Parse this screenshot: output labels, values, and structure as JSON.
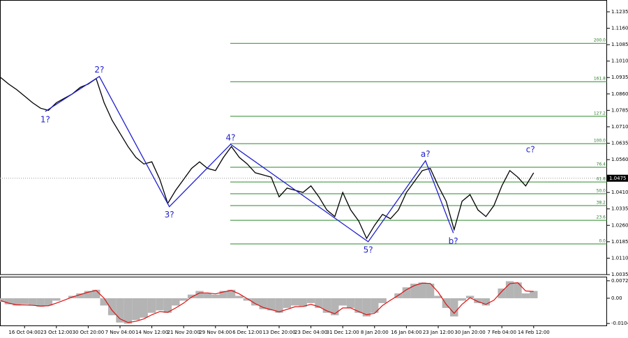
{
  "chart_data": [
    {
      "type": "line",
      "categories": [
        null,
        null,
        null,
        "16 Oct 04:00",
        null,
        null,
        null,
        "23 Oct 12:00",
        null,
        null,
        null,
        "30 Oct 20:00",
        null,
        null,
        null,
        "7 Nov 04:00",
        null,
        null,
        null,
        "14 Nov 12:00",
        null,
        null,
        null,
        "21 Nov 20:00",
        null,
        null,
        null,
        "29 Nov 04:00",
        null,
        null,
        null,
        "6 Dec 12:00",
        null,
        null,
        null,
        "13 Dec 20:00",
        null,
        null,
        null,
        "23 Dec 04:00",
        null,
        null,
        null,
        "31 Dec 12:00",
        null,
        null,
        null,
        "8 Jan 20:00",
        null,
        null,
        null,
        "16 Jan 04:00",
        null,
        null,
        null,
        "23 Jan 12:00",
        null,
        null,
        null,
        "30 Jan 20:00",
        null,
        null,
        null,
        "7 Feb 04:00",
        null,
        null,
        null,
        "14 Feb 12:00"
      ],
      "series": [
        {
          "color": "#000000",
          "values": [
            1.0935,
            1.0905,
            1.088,
            1.085,
            1.082,
            1.0795,
            1.0785,
            1.082,
            1.084,
            1.086,
            1.089,
            1.0905,
            1.093,
            1.082,
            1.074,
            1.068,
            1.062,
            1.057,
            1.054,
            1.055,
            1.047,
            1.036,
            1.042,
            1.047,
            1.052,
            1.055,
            1.052,
            1.051,
            1.057,
            1.062,
            1.057,
            1.054,
            1.05,
            1.049,
            1.048,
            1.039,
            1.043,
            1.042,
            1.041,
            1.044,
            1.039,
            1.033,
            1.03,
            1.041,
            1.033,
            1.028,
            1.02,
            1.026,
            1.031,
            1.029,
            1.033,
            1.041,
            1.046,
            1.051,
            1.052,
            1.044,
            1.037,
            1.024,
            1.037,
            1.04,
            1.033,
            1.03,
            1.035,
            1.044,
            1.051,
            1.048,
            1.044,
            1.05
          ]
        }
      ],
      "ylim": [
        1.0035,
        1.1289
      ],
      "yticks": [
        {
          "value": 1.1235,
          "label": "1.1235"
        },
        {
          "value": 1.116,
          "label": "1.1160"
        },
        {
          "value": 1.1085,
          "label": "1.1085"
        },
        {
          "value": 1.101,
          "label": "1.1010"
        },
        {
          "value": 1.0935,
          "label": "1.0935"
        },
        {
          "value": 1.086,
          "label": "1.0860"
        },
        {
          "value": 1.0785,
          "label": "1.0785"
        },
        {
          "value": 1.071,
          "label": "1.0710"
        },
        {
          "value": 1.0635,
          "label": "1.0635"
        },
        {
          "value": 1.056,
          "label": "1.0560"
        },
        {
          "value": 1.041,
          "label": "1.0410"
        },
        {
          "value": 1.0335,
          "label": "1.0335"
        },
        {
          "value": 1.026,
          "label": "1.0260"
        },
        {
          "value": 1.0185,
          "label": "1.0185"
        },
        {
          "value": 1.011,
          "label": "1.0110"
        },
        {
          "value": 1.0035,
          "label": "1.0035"
        }
      ],
      "last_price": 1.0475,
      "fib": {
        "color": "#2a8a2a",
        "labels": [
          "0.0",
          "23.6",
          "38.2",
          "50.0",
          "61.8",
          "76.4",
          "100.0",
          "127.2",
          "161.8",
          "200.0"
        ],
        "prices": [
          1.0175,
          1.0283,
          1.035,
          1.0404,
          1.0458,
          1.0525,
          1.0633,
          1.0758,
          1.0916,
          1.1091
        ]
      },
      "waves": {
        "color": "#1f1fd0",
        "labels": [
          "1?",
          "2?",
          "3?",
          "4?",
          "5?",
          "a?",
          "b?",
          "c?"
        ],
        "x": [
          5.6,
          12.4,
          21.2,
          28.9,
          46.2,
          53.4,
          56.9,
          66.6
        ],
        "values": [
          1.078,
          1.094,
          1.0345,
          1.063,
          1.0185,
          1.0555,
          1.0225,
          null
        ]
      }
    },
    {
      "type": "bar",
      "series": [
        {
          "color": "#b4b4b4",
          "values": [
            -0.0015,
            -0.0025,
            -0.003,
            -0.0025,
            -0.003,
            -0.0035,
            -0.003,
            -0.001,
            0,
            0.001,
            0.002,
            0.003,
            0.0035,
            -0.003,
            -0.007,
            -0.01,
            -0.0105,
            -0.009,
            -0.008,
            -0.006,
            -0.005,
            -0.006,
            -0.003,
            -0.001,
            0.0015,
            0.003,
            0.002,
            0.0015,
            0.003,
            0.0035,
            0.001,
            -0.001,
            -0.003,
            -0.0045,
            -0.005,
            -0.006,
            -0.004,
            -0.003,
            -0.0035,
            -0.002,
            -0.004,
            -0.006,
            -0.007,
            -0.003,
            -0.004,
            -0.006,
            -0.0075,
            -0.006,
            -0.002,
            0,
            0.002,
            0.0045,
            0.006,
            0.0065,
            0.006,
            0.001,
            -0.004,
            -0.0075,
            -0.001,
            0.001,
            -0.002,
            -0.003,
            0,
            0.004,
            0.007,
            0.0065,
            0.002,
            0.003
          ]
        },
        {
          "color": "#e01010",
          "values": [
            -0.001,
            -0.002,
            -0.0027,
            -0.0028,
            -0.0029,
            -0.0032,
            -0.0031,
            -0.002,
            -0.0008,
            0.0005,
            0.0015,
            0.0025,
            0.0032,
            0,
            -0.005,
            -0.0085,
            -0.01,
            -0.0095,
            -0.0085,
            -0.0068,
            -0.0055,
            -0.0058,
            -0.004,
            -0.002,
            0.0005,
            0.0022,
            0.0022,
            0.0018,
            0.0026,
            0.0032,
            0.0018,
            -0.0002,
            -0.0022,
            -0.0038,
            -0.0047,
            -0.0056,
            -0.0046,
            -0.0035,
            -0.0034,
            -0.0025,
            -0.0035,
            -0.0052,
            -0.0064,
            -0.004,
            -0.004,
            -0.0055,
            -0.0068,
            -0.0062,
            -0.003,
            -0.0008,
            0.0012,
            0.0035,
            0.0052,
            0.0062,
            0.0061,
            0.0025,
            -0.0025,
            -0.0062,
            -0.0025,
            0.0002,
            -0.0014,
            -0.0025,
            -0.0008,
            0.0028,
            0.006,
            0.0064,
            0.003,
            0.0028
          ]
        }
      ],
      "ylim": [
        -0.0115,
        0.0086
      ],
      "yticks": [
        0.0072,
        {
          "value": 0,
          "label": "0.00"
        },
        -0.0104
      ]
    }
  ]
}
